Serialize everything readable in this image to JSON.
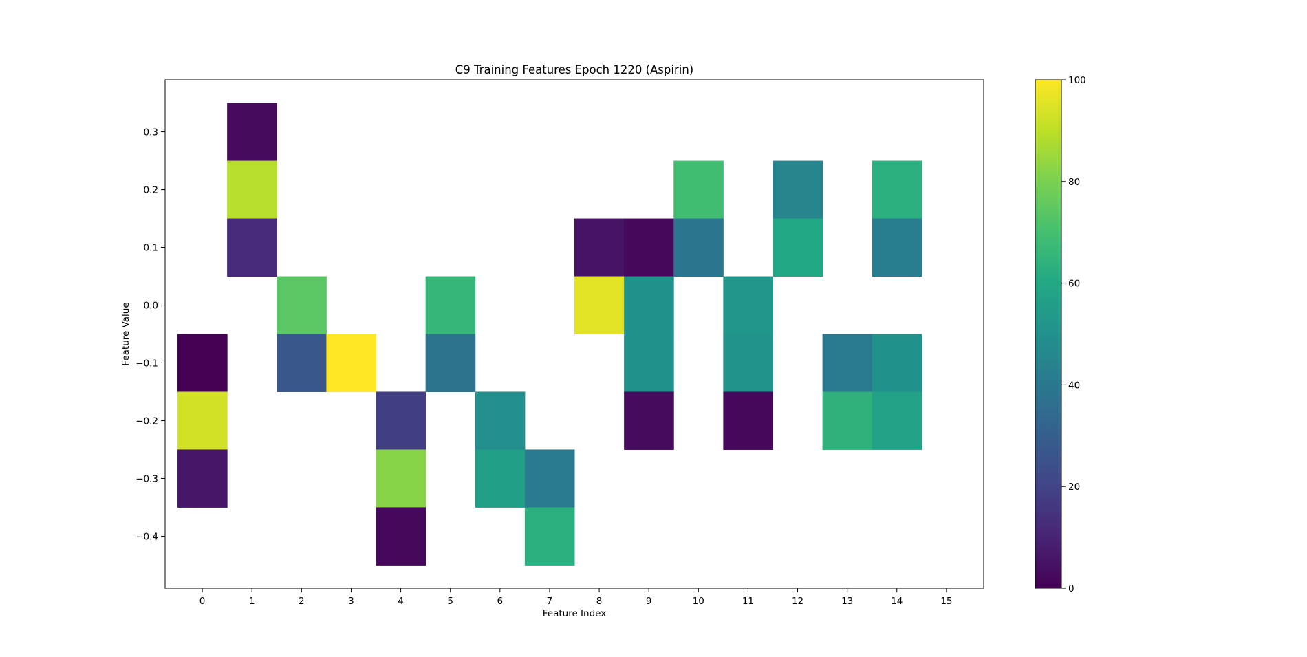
{
  "chart_data": {
    "type": "heatmap",
    "title": "C9 Training Features Epoch 1220 (Aspirin)",
    "xlabel": "Feature Index",
    "ylabel": "Feature Value",
    "xlim": [
      -0.75,
      15.75
    ],
    "ylim": [
      -0.49,
      0.39
    ],
    "x_ticks": [
      "0",
      "1",
      "2",
      "3",
      "4",
      "5",
      "6",
      "7",
      "8",
      "9",
      "10",
      "11",
      "12",
      "13",
      "14",
      "15"
    ],
    "y_ticks": [
      "0.3",
      "0.2",
      "0.1",
      "0.0",
      "−0.1",
      "−0.2",
      "−0.3",
      "−0.4"
    ],
    "y_tick_values": [
      0.3,
      0.2,
      0.1,
      0.0,
      -0.1,
      -0.2,
      -0.3,
      -0.4
    ],
    "colormap": "viridis",
    "colorbar": {
      "min": 0,
      "max": 100,
      "ticks": [
        "0",
        "20",
        "40",
        "60",
        "80",
        "100"
      ],
      "tick_values": [
        0,
        20,
        40,
        60,
        80,
        100
      ]
    },
    "cell_width": 1,
    "cell_height": 0.1,
    "cells": [
      {
        "x": 0,
        "y": -0.1,
        "value": 0
      },
      {
        "x": 0,
        "y": -0.2,
        "value": 93
      },
      {
        "x": 0,
        "y": -0.3,
        "value": 6
      },
      {
        "x": 1,
        "y": 0.3,
        "value": 3
      },
      {
        "x": 1,
        "y": 0.2,
        "value": 89
      },
      {
        "x": 1,
        "y": 0.1,
        "value": 12
      },
      {
        "x": 2,
        "y": 0.0,
        "value": 74
      },
      {
        "x": 2,
        "y": -0.1,
        "value": 27
      },
      {
        "x": 3,
        "y": -0.1,
        "value": 100
      },
      {
        "x": 4,
        "y": -0.2,
        "value": 18
      },
      {
        "x": 4,
        "y": -0.3,
        "value": 82
      },
      {
        "x": 4,
        "y": -0.4,
        "value": 2
      },
      {
        "x": 5,
        "y": 0.0,
        "value": 66
      },
      {
        "x": 5,
        "y": -0.1,
        "value": 38
      },
      {
        "x": 6,
        "y": -0.2,
        "value": 49
      },
      {
        "x": 6,
        "y": -0.3,
        "value": 56
      },
      {
        "x": 7,
        "y": -0.3,
        "value": 41
      },
      {
        "x": 7,
        "y": -0.4,
        "value": 63
      },
      {
        "x": 8,
        "y": 0.1,
        "value": 5
      },
      {
        "x": 8,
        "y": 0.0,
        "value": 96
      },
      {
        "x": 9,
        "y": 0.1,
        "value": 2
      },
      {
        "x": 9,
        "y": 0.0,
        "value": 50
      },
      {
        "x": 9,
        "y": -0.1,
        "value": 50
      },
      {
        "x": 9,
        "y": -0.2,
        "value": 3
      },
      {
        "x": 10,
        "y": 0.2,
        "value": 69
      },
      {
        "x": 10,
        "y": 0.1,
        "value": 39
      },
      {
        "x": 11,
        "y": 0.0,
        "value": 52
      },
      {
        "x": 11,
        "y": -0.1,
        "value": 51
      },
      {
        "x": 11,
        "y": -0.2,
        "value": 2
      },
      {
        "x": 12,
        "y": 0.2,
        "value": 45
      },
      {
        "x": 12,
        "y": 0.1,
        "value": 60
      },
      {
        "x": 13,
        "y": -0.1,
        "value": 41
      },
      {
        "x": 13,
        "y": -0.2,
        "value": 64
      },
      {
        "x": 14,
        "y": 0.2,
        "value": 63
      },
      {
        "x": 14,
        "y": 0.1,
        "value": 42
      },
      {
        "x": 14,
        "y": -0.1,
        "value": 50
      },
      {
        "x": 14,
        "y": -0.2,
        "value": 57
      }
    ]
  }
}
